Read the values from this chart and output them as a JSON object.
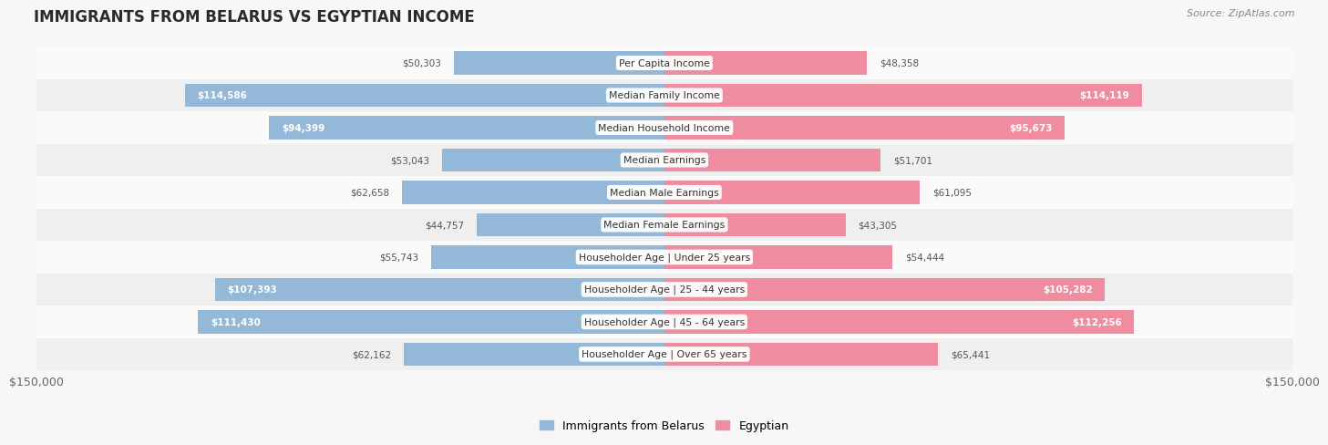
{
  "title": "IMMIGRANTS FROM BELARUS VS EGYPTIAN INCOME",
  "source": "Source: ZipAtlas.com",
  "categories": [
    "Per Capita Income",
    "Median Family Income",
    "Median Household Income",
    "Median Earnings",
    "Median Male Earnings",
    "Median Female Earnings",
    "Householder Age | Under 25 years",
    "Householder Age | 25 - 44 years",
    "Householder Age | 45 - 64 years",
    "Householder Age | Over 65 years"
  ],
  "belarus_values": [
    50303,
    114586,
    94399,
    53043,
    62658,
    44757,
    55743,
    107393,
    111430,
    62162
  ],
  "egypt_values": [
    48358,
    114119,
    95673,
    51701,
    61095,
    43305,
    54444,
    105282,
    112256,
    65441
  ],
  "belarus_color": "#94b8d8",
  "egypt_color": "#f08ca0",
  "bg_color": "#f7f7f7",
  "row_bg_even": "#efefef",
  "row_bg_odd": "#fafafa",
  "max_val": 150000,
  "legend_belarus": "Immigrants from Belarus",
  "legend_egypt": "Egyptian",
  "label_left": "$150,000",
  "label_right": "$150,000",
  "threshold_inside": 70000
}
